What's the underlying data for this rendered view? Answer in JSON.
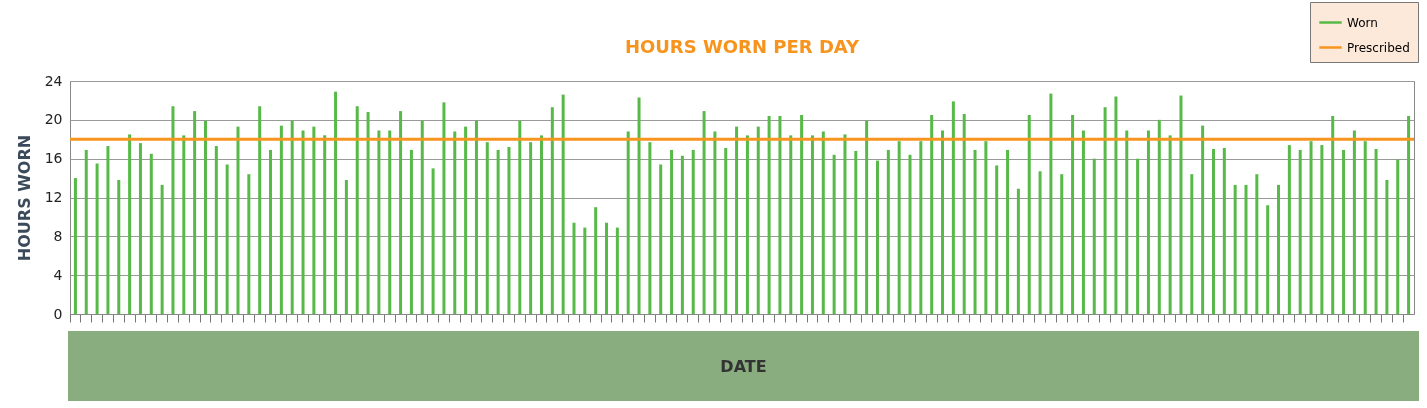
{
  "chart_data": {
    "type": "bar",
    "title": "HOURS WORN PER DAY",
    "xlabel": "DATE",
    "ylabel": "HOURS WORN",
    "categories": [
      null,
      null,
      null,
      null,
      null,
      null,
      null,
      null,
      null,
      null,
      null,
      null,
      null,
      null,
      null,
      null,
      null,
      null,
      null,
      null,
      null,
      null,
      null,
      null,
      null,
      null,
      null,
      null,
      null,
      null,
      null,
      null,
      null,
      null,
      null,
      null,
      null,
      null,
      null,
      null,
      null,
      null,
      null,
      null,
      null,
      null,
      null,
      null,
      null,
      null,
      null,
      null,
      null,
      null,
      null,
      null,
      null,
      null,
      null,
      null,
      null,
      null,
      null,
      null,
      null,
      null,
      null,
      null,
      null,
      null,
      null,
      null,
      null,
      null,
      null,
      null,
      null,
      null,
      null,
      null,
      null,
      null,
      null,
      null,
      null,
      null,
      null,
      null,
      null,
      null,
      null,
      null,
      null,
      null,
      null,
      null,
      null,
      null,
      null,
      null,
      null,
      null,
      null,
      null,
      null,
      null,
      null,
      null,
      null,
      null,
      null,
      null,
      null,
      null,
      null,
      null,
      null,
      null,
      null,
      null,
      null,
      null,
      null,
      null
    ],
    "series": [
      {
        "name": "Worn",
        "color": "#57b947",
        "values": [
          14,
          16.9,
          15.5,
          17.3,
          13.8,
          18.5,
          17.6,
          16.5,
          13.3,
          21.4,
          18.4,
          20.9,
          19.9,
          17.3,
          15.4,
          19.3,
          14.4,
          21.4,
          16.9,
          19.4,
          19.9,
          18.9,
          19.3,
          18.4,
          22.9,
          13.8,
          21.4,
          20.8,
          18.9,
          18.9,
          20.9,
          16.9,
          19.9,
          15,
          21.8,
          18.8,
          19.3,
          19.9,
          17.7,
          16.9,
          17.2,
          19.9,
          17.7,
          18.4,
          21.3,
          22.6,
          9.4,
          8.9,
          11,
          9.4,
          8.9,
          18.8,
          22.3,
          17.7,
          15.4,
          16.9,
          16.3,
          16.9,
          20.9,
          18.8,
          17.1,
          19.3,
          18.4,
          19.3,
          20.4,
          20.4,
          18.4,
          20.5,
          18.4,
          18.8,
          16.4,
          18.5,
          16.8,
          19.9,
          15.8,
          16.9,
          17.8,
          16.4,
          17.8,
          20.5,
          18.9,
          21.9,
          20.6,
          16.9,
          17.8,
          15.3,
          16.9,
          12.9,
          20.5,
          14.7,
          22.7,
          14.4,
          20.5,
          18.9,
          16,
          21.3,
          22.4,
          18.9,
          16,
          18.9,
          20,
          18.4,
          22.5,
          14.4,
          19.4,
          17,
          17.1,
          13.3,
          13.3,
          14.4,
          11.2,
          13.3,
          17.4,
          16.9,
          17.8,
          17.4,
          20.4,
          16.9,
          18.9,
          17.8,
          17,
          13.8,
          15.9,
          20.4
        ]
      }
    ],
    "ref_lines": [
      {
        "axis": "y",
        "value": 18,
        "label": "Prescribed",
        "color": "#f7941d"
      }
    ],
    "ylim": [
      0,
      24
    ],
    "yticks": [
      0,
      4,
      8,
      12,
      16,
      20,
      24
    ],
    "grid": "y",
    "legend": "top right",
    "tick_labels": "y"
  }
}
